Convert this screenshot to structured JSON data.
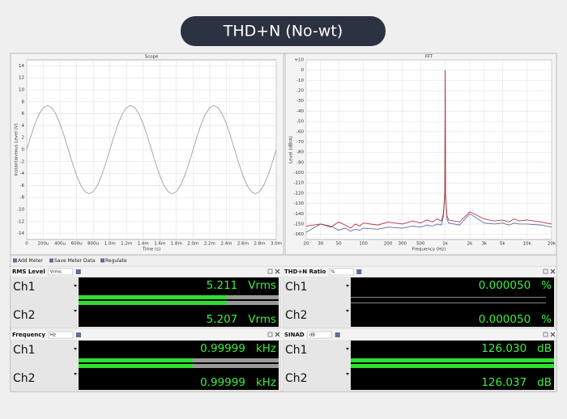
{
  "header": {
    "title": "THD+N (No-wt)"
  },
  "chart_data": [
    {
      "type": "line",
      "title": "Scope",
      "x_label": "Time (s)",
      "y_label": "Instantaneous Level (V)",
      "color": "#a0a0a0",
      "grid": true,
      "xlim": [
        0,
        0.003
      ],
      "ylim": [
        -15,
        15
      ],
      "xticks": [
        0,
        {
          "value": 0.0002,
          "label": "200u"
        },
        {
          "value": 0.0004,
          "label": "400u"
        },
        {
          "value": 0.0006,
          "label": "600u"
        },
        {
          "value": 0.0008,
          "label": "800u"
        },
        {
          "value": 0.001,
          "label": "1.0m"
        },
        {
          "value": 0.0012,
          "label": "1.2m"
        },
        {
          "value": 0.0014,
          "label": "1.4m"
        },
        {
          "value": 0.0016,
          "label": "1.6m"
        },
        {
          "value": 0.0018,
          "label": "1.8m"
        },
        {
          "value": 0.002,
          "label": "2.0m"
        },
        {
          "value": 0.0022,
          "label": "2.2m"
        },
        {
          "value": 0.0024,
          "label": "2.4m"
        },
        {
          "value": 0.0026,
          "label": "2.6m"
        },
        {
          "value": 0.0028,
          "label": "2.8m"
        },
        {
          "value": 0.003,
          "label": "3.0m"
        }
      ],
      "yticks": [
        -14,
        -12,
        -10,
        -8,
        -6,
        -4,
        -2,
        0,
        2,
        4,
        6,
        8,
        10,
        12,
        14
      ],
      "x": [
        0,
        5e-05,
        0.0001,
        0.00015,
        0.0002,
        0.00025,
        0.0003,
        0.00035,
        0.0004,
        0.00045,
        0.0005,
        0.00055,
        0.0006,
        0.00065,
        0.0007,
        0.00075,
        0.0008,
        0.00085,
        0.0009,
        0.00095,
        0.001,
        0.00105,
        0.0011,
        0.00115,
        0.0012,
        0.00125,
        0.0013,
        0.00135,
        0.0014,
        0.00145,
        0.0015,
        0.00155,
        0.0016,
        0.00165,
        0.0017,
        0.00175,
        0.0018,
        0.00185,
        0.0019,
        0.00195,
        0.002,
        0.00205,
        0.0021,
        0.00215,
        0.0022,
        0.00225,
        0.0023,
        0.00235,
        0.0024,
        0.00245,
        0.0025,
        0.00255,
        0.0026,
        0.00265,
        0.0027,
        0.00275,
        0.0028,
        0.00285,
        0.0029,
        0.00295,
        0.003
      ],
      "values": [
        0,
        2.28,
        4.33,
        5.96,
        7.01,
        7.37,
        7.01,
        5.96,
        4.33,
        2.28,
        0,
        -2.28,
        -4.33,
        -5.96,
        -7.01,
        -7.37,
        -7.01,
        -5.96,
        -4.33,
        -2.28,
        0,
        2.28,
        4.33,
        5.96,
        7.01,
        7.37,
        7.01,
        5.96,
        4.33,
        2.28,
        0,
        -2.28,
        -4.33,
        -5.96,
        -7.01,
        -7.37,
        -7.01,
        -5.96,
        -4.33,
        -2.28,
        0,
        2.28,
        4.33,
        5.96,
        7.01,
        7.37,
        7.01,
        5.96,
        4.33,
        2.28,
        0,
        -2.28,
        -4.33,
        -5.96,
        -7.01,
        -7.37,
        -7.01,
        -5.96,
        -4.33,
        -2.28,
        0
      ]
    },
    {
      "type": "line",
      "title": "FFT",
      "x_label": "Frequency (Hz)",
      "y_label": "Level (dBrA)",
      "log_x": true,
      "grid": true,
      "xlim": [
        20,
        20000
      ],
      "ylim": [
        -165,
        10
      ],
      "xticks": [
        20,
        30,
        50,
        100,
        200,
        300,
        500,
        {
          "value": 1000,
          "label": "1k"
        },
        {
          "value": 2000,
          "label": "2k"
        },
        {
          "value": 3000,
          "label": "3k"
        },
        {
          "value": 5000,
          "label": "5k"
        },
        {
          "value": 10000,
          "label": "10k"
        },
        {
          "value": 20000,
          "label": "20k"
        }
      ],
      "yticks": [
        {
          "value": 10,
          "label": "+10"
        },
        0,
        -10,
        -20,
        -30,
        -40,
        -50,
        -60,
        -70,
        -80,
        -90,
        -100,
        -110,
        -120,
        -130,
        -140,
        -150,
        -160
      ],
      "x": [
        20,
        30,
        40,
        50,
        60,
        70,
        80,
        90,
        100,
        150,
        200,
        300,
        400,
        500,
        600,
        700,
        800,
        900,
        950,
        990,
        1000,
        1010,
        1050,
        1100,
        1500,
        2000,
        3000,
        4000,
        5000,
        6000,
        7000,
        8000,
        10000,
        15000,
        20000
      ],
      "series": [
        {
          "color": "#5a6fa8",
          "values": [
            -158,
            -150,
            -152,
            -156,
            -154,
            -157,
            -155,
            -156,
            -154,
            -155,
            -153,
            -154,
            -152,
            -153,
            -151,
            -152,
            -150,
            -151,
            -143,
            -121,
            -1,
            -122,
            -145,
            -149,
            -151,
            -140,
            -149,
            -150,
            -149,
            -151,
            -149,
            -150,
            -150,
            -151,
            -153
          ]
        },
        {
          "color": "#b8323f",
          "values": [
            -152,
            -150,
            -153,
            -148,
            -151,
            -154,
            -150,
            -152,
            -149,
            -151,
            -148,
            -150,
            -147,
            -149,
            -146,
            -148,
            -145,
            -147,
            -140,
            -118,
            0,
            -120,
            -142,
            -146,
            -148,
            -138,
            -145,
            -147,
            -146,
            -148,
            -145,
            -147,
            -146,
            -148,
            -150
          ]
        }
      ]
    }
  ],
  "toolbar": [
    "Add Meter",
    "Save Meter Data",
    "Regulate"
  ],
  "meters": [
    {
      "title": "RMS Level",
      "unit_select": "Vrms",
      "rows": [
        {
          "channel": "Ch1",
          "value": "5.211",
          "unit": "Vrms"
        },
        {
          "channel": "Ch2",
          "value": "5.207",
          "unit": "Vrms"
        }
      ]
    },
    {
      "title": "THD+N Ratio",
      "unit_select": "%",
      "rows": [
        {
          "channel": "Ch1",
          "value": "0.000050",
          "unit": "%"
        },
        {
          "channel": "Ch2",
          "value": "0.000050",
          "unit": "%"
        }
      ]
    },
    {
      "title": "Frequency",
      "unit_select": "Hz",
      "rows": [
        {
          "channel": "Ch1",
          "value": "0.99999",
          "unit": "kHz"
        },
        {
          "channel": "Ch2",
          "value": "0.99999",
          "unit": "kHz"
        }
      ]
    },
    {
      "title": "SINAD",
      "unit_select": "dB",
      "rows": [
        {
          "channel": "Ch1",
          "value": "126.030",
          "unit": "dB"
        },
        {
          "channel": "Ch2",
          "value": "126.037",
          "unit": "dB"
        }
      ]
    }
  ]
}
